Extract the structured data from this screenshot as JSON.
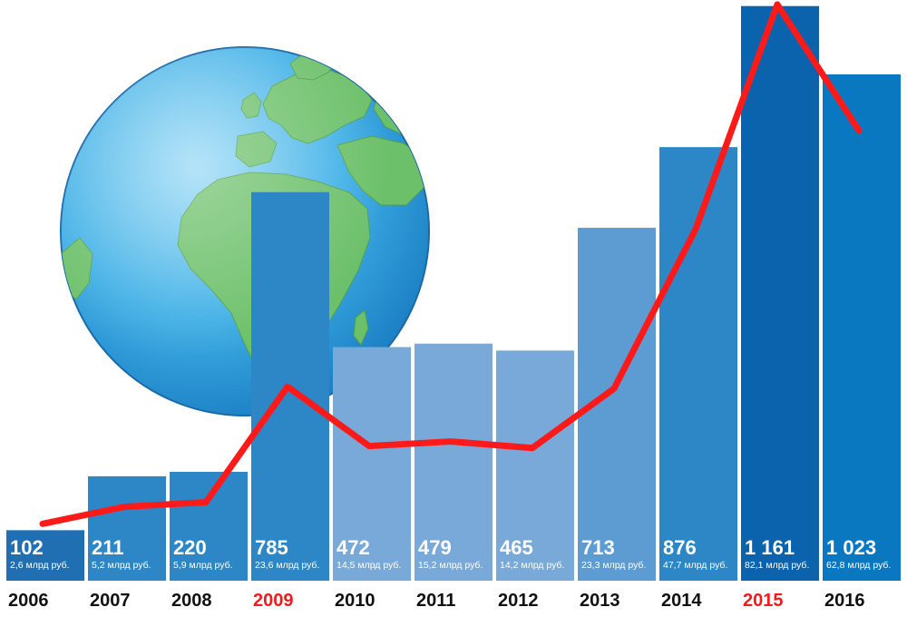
{
  "chart_data": {
    "type": "bar",
    "categories": [
      "2006",
      "2007",
      "2008",
      "2009",
      "2010",
      "2011",
      "2012",
      "2013",
      "2014",
      "2015",
      "2016"
    ],
    "values": [
      102,
      211,
      220,
      785,
      472,
      479,
      465,
      713,
      876,
      1161,
      1023
    ],
    "value_labels": [
      "102",
      "211",
      "220",
      "785",
      "472",
      "479",
      "465",
      "713",
      "876",
      "1 161",
      "1 023"
    ],
    "sub_labels": [
      "2,6 млрд руб.",
      "5,2 млрд руб.",
      "5,9 млрд руб.",
      "23,6 млрд руб.",
      "14,5 млрд руб.",
      "15,2 млрд руб.",
      "14,2 млрд руб.",
      "23,3 млрд руб.",
      "47,7 млрд руб.",
      "82,1 млрд руб.",
      "62,8 млрд руб."
    ],
    "line_series": {
      "values": [
        2.6,
        5.2,
        5.9,
        23.6,
        14.5,
        15.2,
        14.2,
        23.3,
        47.7,
        82.1,
        62.8
      ],
      "color": "#ff1a1a"
    },
    "highlighted_categories": [
      "2009",
      "2015"
    ],
    "bar_colors": [
      "#1f6fb2",
      "#2d86c6",
      "#2d86c6",
      "#2d86c6",
      "#78a9d8",
      "#78a9d8",
      "#78a9d8",
      "#5d9bd3",
      "#2d86c6",
      "#0b62ad",
      "#0a78c0"
    ],
    "label_colors": {
      "normal": "#111111",
      "highlight": "#ee1c1c"
    },
    "grid": false,
    "legend": "none",
    "decoration": "globe"
  }
}
